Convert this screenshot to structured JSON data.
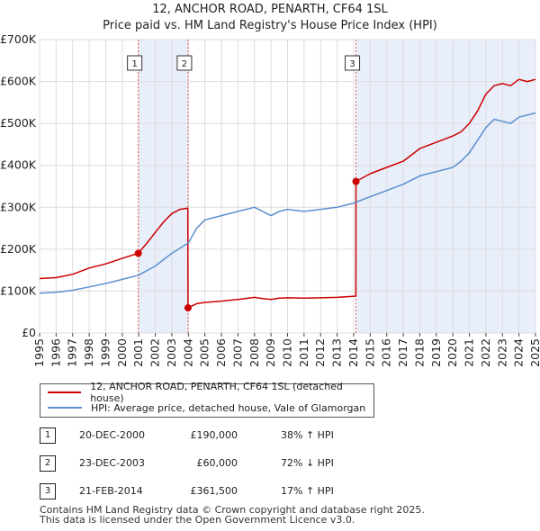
{
  "title_line1": "12, ANCHOR ROAD, PENARTH, CF64 1SL",
  "title_line2": "Price paid vs. HM Land Registry's House Price Index (HPI)",
  "colors": {
    "property": "#cc0000",
    "hpi": "#5b8fd0",
    "shade": "#e8eefa",
    "grid": "#dddddd",
    "marker_line": "#dd6666"
  },
  "legend": {
    "property_label": "12, ANCHOR ROAD, PENARTH, CF64 1SL (detached house)",
    "hpi_label": "HPI: Average price, detached house, Vale of Glamorgan"
  },
  "sales": [
    {
      "num": "1",
      "date": "20-DEC-2000",
      "price": "£190,000",
      "hpi": "38% ↑ HPI"
    },
    {
      "num": "2",
      "date": "23-DEC-2003",
      "price": "£60,000",
      "hpi": "72% ↓ HPI"
    },
    {
      "num": "3",
      "date": "21-FEB-2014",
      "price": "£361,500",
      "hpi": "17% ↑ HPI"
    }
  ],
  "footer_line1": "Contains HM Land Registry data © Crown copyright and database right 2025.",
  "footer_line2": "This data is licensed under the Open Government Licence v3.0.",
  "chart_data": {
    "type": "line",
    "title": "12, ANCHOR ROAD, PENARTH, CF64 1SL - Price paid vs. HM Land Registry's House Price Index (HPI)",
    "xlabel": "",
    "ylabel": "",
    "xlim": [
      1995,
      2025
    ],
    "ylim": [
      0,
      700000
    ],
    "x_ticks": [
      1995,
      1996,
      1997,
      1998,
      1999,
      2000,
      2001,
      2002,
      2003,
      2004,
      2005,
      2006,
      2007,
      2008,
      2009,
      2010,
      2011,
      2012,
      2013,
      2014,
      2015,
      2016,
      2017,
      2018,
      2019,
      2020,
      2021,
      2022,
      2023,
      2024,
      2025
    ],
    "y_ticks": [
      {
        "value": 0,
        "label": "£0"
      },
      {
        "value": 100000,
        "label": "£100K"
      },
      {
        "value": 200000,
        "label": "£200K"
      },
      {
        "value": 300000,
        "label": "£300K"
      },
      {
        "value": 400000,
        "label": "£400K"
      },
      {
        "value": 500000,
        "label": "£500K"
      },
      {
        "value": 600000,
        "label": "£600K"
      },
      {
        "value": 700000,
        "label": "£700K"
      }
    ],
    "shaded_ranges": [
      [
        2000.97,
        2003.98
      ],
      [
        2014.14,
        2025
      ]
    ],
    "sale_markers": [
      {
        "label": "1",
        "x": 2000.97,
        "y": 190000
      },
      {
        "label": "2",
        "x": 2003.98,
        "y": 60000
      },
      {
        "label": "3",
        "x": 2014.14,
        "y": 361500
      }
    ],
    "series": [
      {
        "name": "12, ANCHOR ROAD, PENARTH, CF64 1SL (detached house)",
        "color": "#cc0000",
        "x": [
          1995,
          1996,
          1997,
          1998,
          1999,
          2000,
          2000.97,
          2001.5,
          2002,
          2002.5,
          2003,
          2003.5,
          2003.97,
          2003.98,
          2004.5,
          2005,
          2006,
          2007,
          2008,
          2008.5,
          2009,
          2009.5,
          2010,
          2011,
          2012,
          2013,
          2014.13,
          2014.14,
          2015,
          2016,
          2017,
          2018,
          2019,
          2020,
          2020.5,
          2021,
          2021.5,
          2022,
          2022.5,
          2023,
          2023.5,
          2024,
          2024.5,
          2025
        ],
        "y": [
          130000,
          132000,
          140000,
          155000,
          165000,
          178000,
          190000,
          215000,
          240000,
          265000,
          285000,
          295000,
          298000,
          60000,
          70000,
          73000,
          76000,
          80000,
          85000,
          82000,
          80000,
          83000,
          84000,
          83000,
          84000,
          85000,
          88000,
          361500,
          380000,
          395000,
          410000,
          440000,
          455000,
          470000,
          480000,
          500000,
          530000,
          570000,
          590000,
          595000,
          590000,
          605000,
          600000,
          605000
        ]
      },
      {
        "name": "HPI: Average price, detached house, Vale of Glamorgan",
        "color": "#5b8fd0",
        "x": [
          1995,
          1996,
          1997,
          1998,
          1999,
          2000,
          2001,
          2002,
          2003,
          2004,
          2004.5,
          2005,
          2006,
          2007,
          2008,
          2008.5,
          2009,
          2009.5,
          2010,
          2011,
          2012,
          2013,
          2014,
          2015,
          2016,
          2017,
          2018,
          2019,
          2020,
          2020.5,
          2021,
          2021.5,
          2022,
          2022.5,
          2023,
          2023.5,
          2024,
          2024.5,
          2025
        ],
        "y": [
          95000,
          97000,
          102000,
          110000,
          118000,
          128000,
          138000,
          160000,
          190000,
          215000,
          250000,
          270000,
          280000,
          290000,
          300000,
          290000,
          280000,
          290000,
          295000,
          290000,
          295000,
          300000,
          310000,
          325000,
          340000,
          355000,
          375000,
          385000,
          395000,
          410000,
          430000,
          460000,
          490000,
          510000,
          505000,
          500000,
          515000,
          520000,
          525000
        ]
      }
    ]
  }
}
